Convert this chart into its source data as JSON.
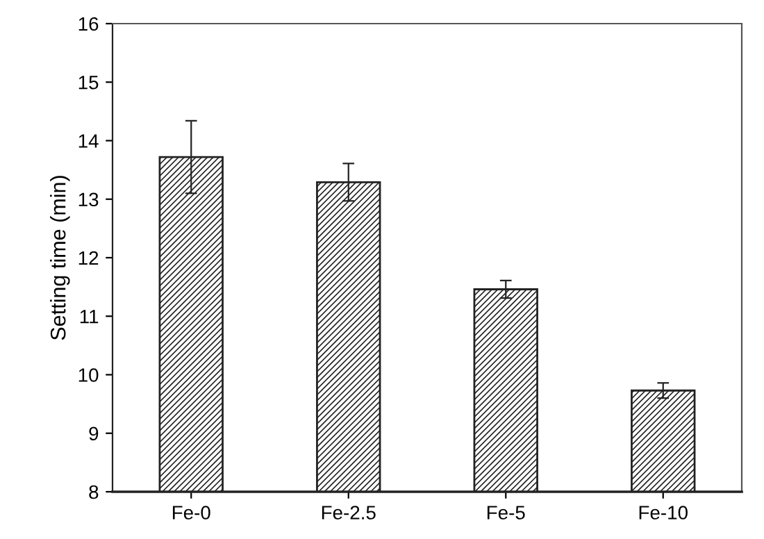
{
  "chart_data": {
    "type": "bar",
    "ylabel": "Setting time (min)",
    "categories": [
      "Fe-0",
      "Fe-2.5",
      "Fe-5",
      "Fe-10"
    ],
    "values": [
      13.72,
      13.29,
      11.46,
      9.73
    ],
    "errors": [
      0.62,
      0.32,
      0.15,
      0.13
    ],
    "color": "#222222",
    "ylim": [
      8,
      16
    ],
    "yticks": [
      8,
      9,
      10,
      11,
      12,
      13,
      14,
      15,
      16
    ],
    "grid": false
  }
}
